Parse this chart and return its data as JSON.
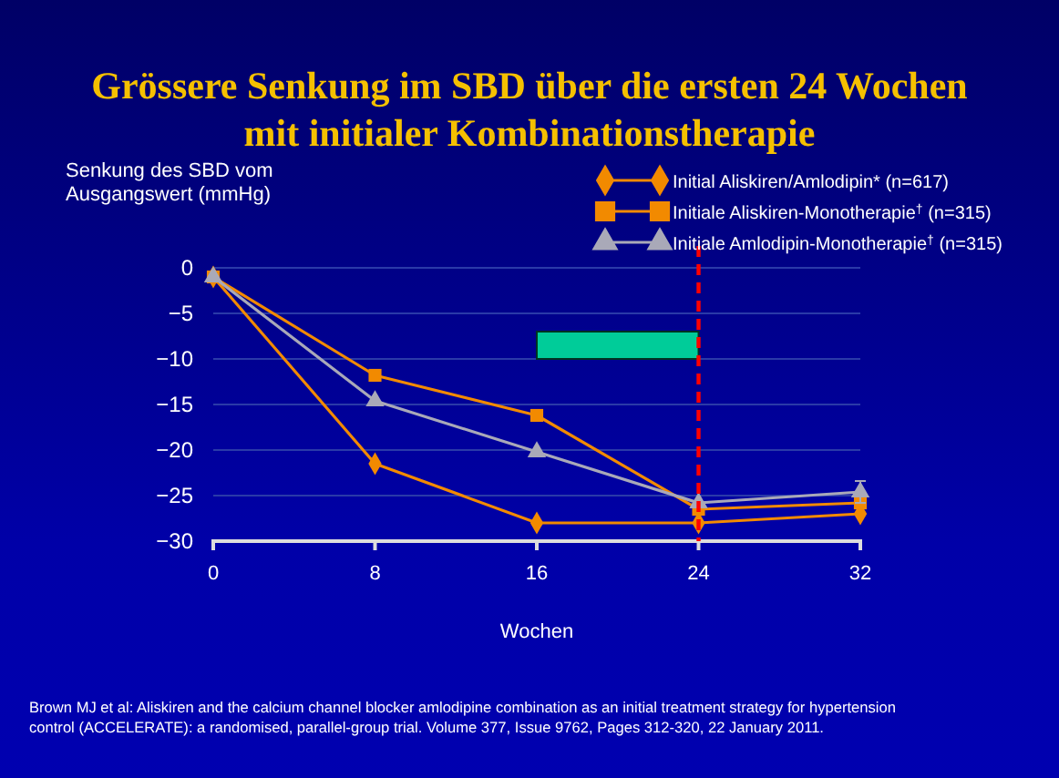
{
  "chart_data": {
    "type": "line",
    "title": "Grössere Senkung im SBD über die ersten 24 Wochen mit initialer Kombinationstherapie",
    "ylabel": "Senkung des SBD vom Ausgangswert (mmHg)",
    "xlabel": "Wochen",
    "x": [
      0,
      8,
      16,
      24,
      32
    ],
    "xlim": [
      0,
      32
    ],
    "xticks": [
      0,
      8,
      16,
      24,
      32
    ],
    "ylim": [
      -30,
      0
    ],
    "yticks": [
      {
        "value": 0,
        "label": "0"
      },
      {
        "value": -5,
        "label": "−5"
      },
      {
        "value": -10,
        "label": "−10"
      },
      {
        "value": -15,
        "label": "−15"
      },
      {
        "value": -20,
        "label": "−20"
      },
      {
        "value": -25,
        "label": "−25"
      },
      {
        "value": -30,
        "label": "−30"
      }
    ],
    "grid": "y",
    "legend": "top right",
    "line_style": "solid",
    "series": [
      {
        "name": "Initial Aliskiren/Amlodipin* (n=617)",
        "color": "#f28a00",
        "marker": "diamond",
        "values": [
          -1,
          -21.5,
          -28,
          -28,
          -27
        ]
      },
      {
        "name": "Initiale Aliskiren-Monotherapie$^{†}$ (n=315)",
        "color": "#f28a00",
        "marker": "square",
        "values": [
          -1,
          -11.8,
          -16.2,
          -26.5,
          -25.8
        ]
      },
      {
        "name": "Initiale Amlodipin-Monotherapie$^{†}$ (n=315)",
        "color": "#a9a9b8",
        "marker": "triangle",
        "values": [
          -1,
          -14.6,
          -20.2,
          -25.8,
          -24.6
        ],
        "errors": [
          null,
          null,
          null,
          null,
          1.2
        ]
      }
    ],
    "ref_lines": [
      {
        "axis": "x",
        "value": 24,
        "color": "#ff0000",
        "line_style": "dashed"
      }
    ],
    "annotations": [
      "Brown MJ et al: Aliskiren and the calcium channel blocker amlodipine combination as an initial treatment strategy for hypertension control (ACCELERATE): a randomised, parallel-group trial. Volume 377, Issue 9762, Pages 312-320, 22 January 2011."
    ]
  }
}
